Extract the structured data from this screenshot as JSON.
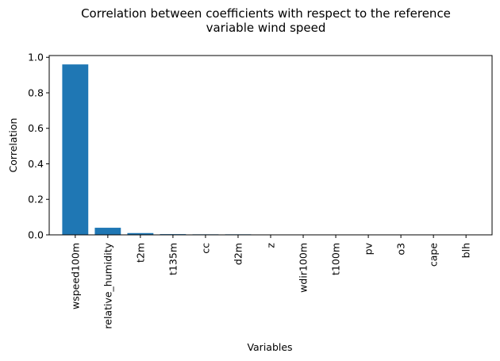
{
  "chart_data": {
    "type": "bar",
    "title_lines": [
      "Correlation between coefficients with respect to the reference",
      "variable wind speed"
    ],
    "xlabel": "Variables",
    "ylabel": "Correlation",
    "categories": [
      "wspeed100m",
      "relative_humidity",
      "t2m",
      "t135m",
      "cc",
      "d2m",
      "z",
      "wdir100m",
      "t100m",
      "pv",
      "o3",
      "cape",
      "blh"
    ],
    "values": [
      0.96,
      0.04,
      0.01,
      0.004,
      0.003,
      0.003,
      0.001,
      0.001,
      0.0005,
      0.0005,
      0.0005,
      0.0005,
      0.0005
    ],
    "yticks": [
      "0.0",
      "0.2",
      "0.4",
      "0.6",
      "0.8",
      "1.0"
    ],
    "ylim": [
      0,
      1.01
    ],
    "grid": false,
    "bar_color": "#1f77b4"
  }
}
